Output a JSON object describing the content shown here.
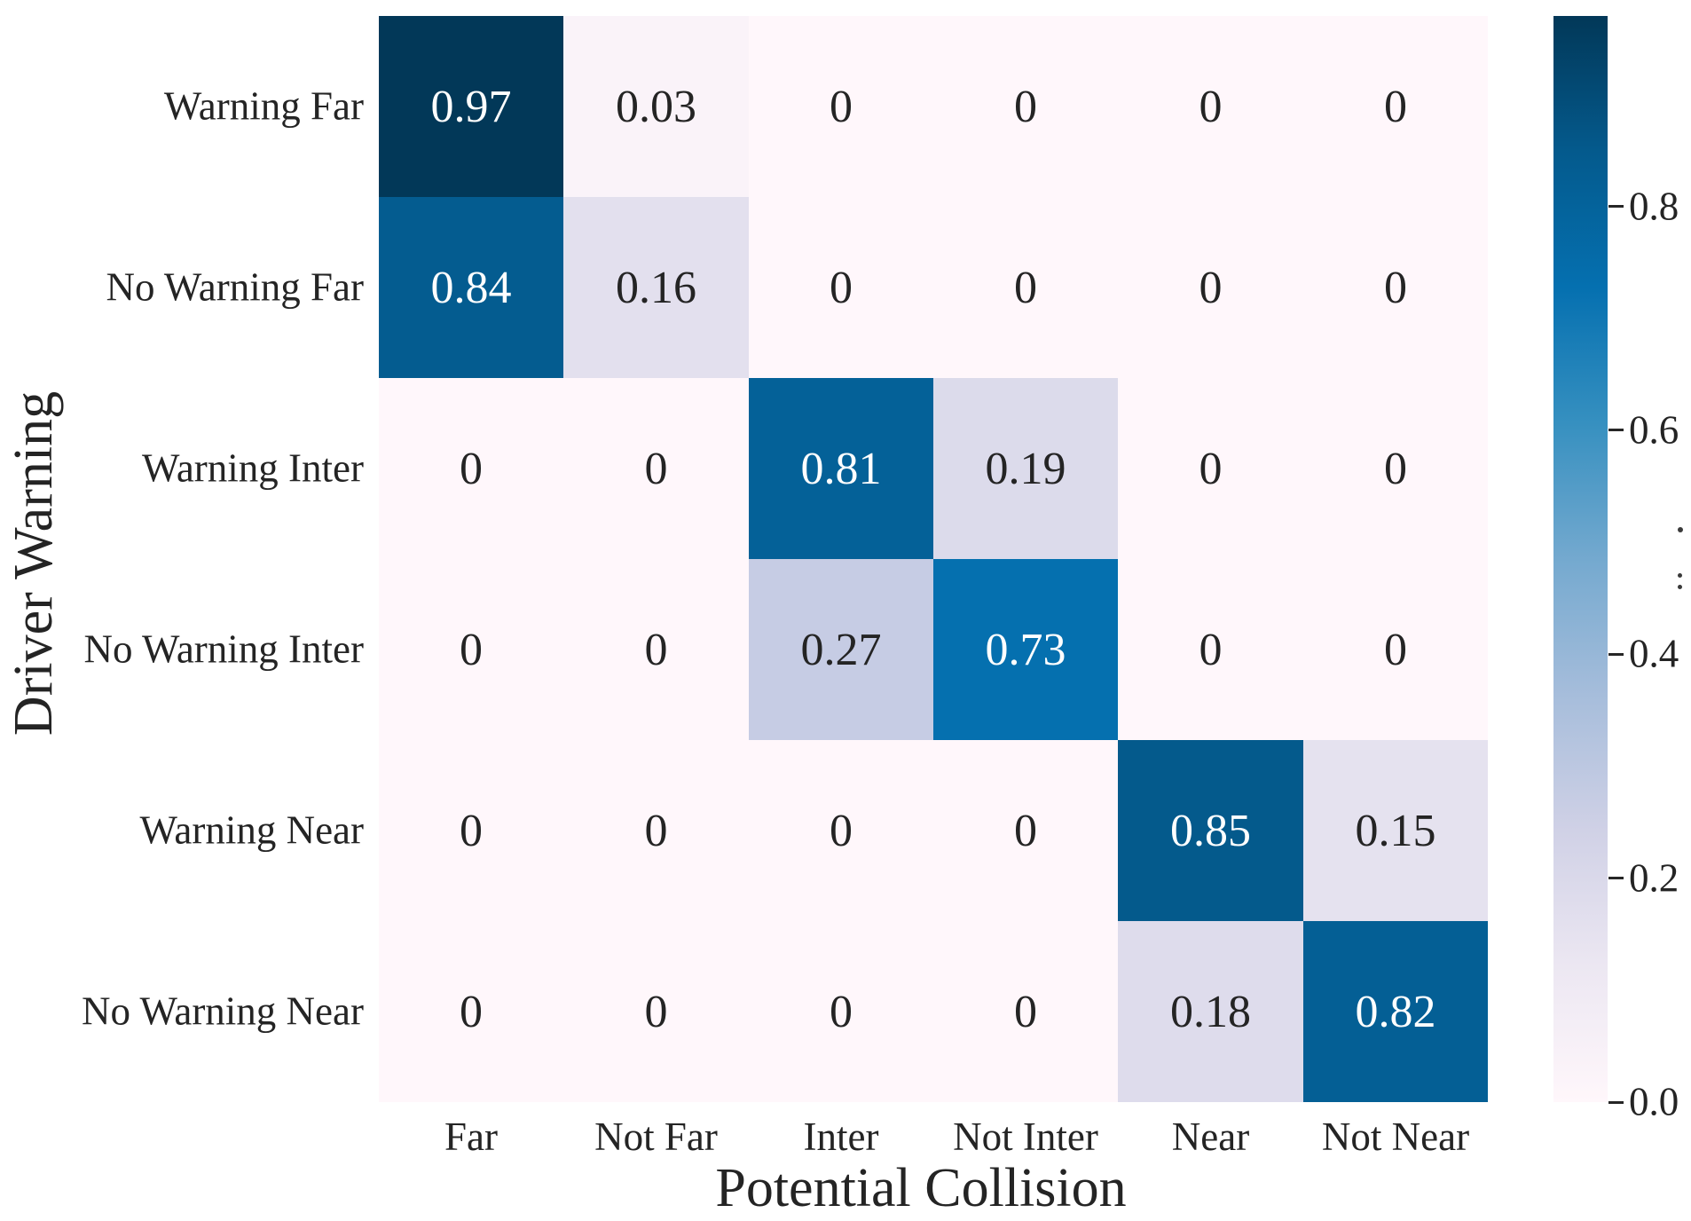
{
  "chart_data": {
    "type": "heatmap",
    "title": "",
    "xlabel": "Potential Collision",
    "ylabel": "Driver Warning",
    "x_categories": [
      "Far",
      "Not Far",
      "Inter",
      "Not Inter",
      "Near",
      "Not Near"
    ],
    "y_categories": [
      "Warning Far",
      "No Warning Far",
      "Warning Inter",
      "No Warning Inter",
      "Warning Near",
      "No Warning Near"
    ],
    "values": [
      [
        0.97,
        0.03,
        0,
        0,
        0,
        0
      ],
      [
        0.84,
        0.16,
        0,
        0,
        0,
        0
      ],
      [
        0,
        0,
        0.81,
        0.19,
        0,
        0
      ],
      [
        0,
        0,
        0.27,
        0.73,
        0,
        0
      ],
      [
        0,
        0,
        0,
        0,
        0.85,
        0.15
      ],
      [
        0,
        0,
        0,
        0,
        0.18,
        0.82
      ]
    ],
    "cell_labels": [
      [
        "0.97",
        "0.03",
        "0",
        "0",
        "0",
        "0"
      ],
      [
        "0.84",
        "0.16",
        "0",
        "0",
        "0",
        "0"
      ],
      [
        "0",
        "0",
        "0.81",
        "0.19",
        "0",
        "0"
      ],
      [
        "0",
        "0",
        "0.27",
        "0.73",
        "0",
        "0"
      ],
      [
        "0",
        "0",
        "0",
        "0",
        "0.85",
        "0.15"
      ],
      [
        "0",
        "0",
        "0",
        "0",
        "0.18",
        "0.82"
      ]
    ],
    "grid": "off",
    "legend": "none",
    "colormap": {
      "name": "PuBu",
      "vmin": 0,
      "vmax": 0.97,
      "stops": [
        {
          "pos": 0.0,
          "color": "#fff7fb"
        },
        {
          "pos": 0.125,
          "color": "#ece7f2"
        },
        {
          "pos": 0.25,
          "color": "#d0d1e6"
        },
        {
          "pos": 0.375,
          "color": "#a6bddb"
        },
        {
          "pos": 0.5,
          "color": "#74a9cf"
        },
        {
          "pos": 0.625,
          "color": "#3690c0"
        },
        {
          "pos": 0.75,
          "color": "#0570b0"
        },
        {
          "pos": 0.875,
          "color": "#045a8d"
        },
        {
          "pos": 1.0,
          "color": "#023858"
        }
      ]
    },
    "colorbar": {
      "ticks": [
        {
          "label": "0.0",
          "value": 0.0
        },
        {
          "label": "0.2",
          "value": 0.2
        },
        {
          "label": "0.4",
          "value": 0.4
        },
        {
          "label": "0.6",
          "value": 0.6
        },
        {
          "label": "0.8",
          "value": 0.8
        }
      ]
    },
    "text_color": "#242424",
    "annot_text_light": "#ffffff",
    "white_text_threshold": 0.5
  }
}
